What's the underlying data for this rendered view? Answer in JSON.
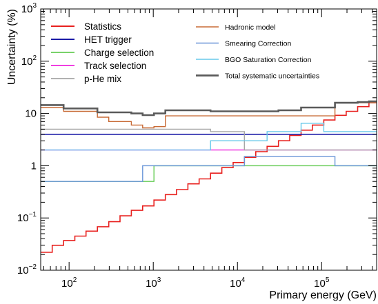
{
  "chart_data": {
    "type": "line",
    "title": "",
    "xlabel": "Primary energy (GeV)",
    "ylabel": "Uncertainty (%)",
    "xscale": "log",
    "yscale": "log",
    "xlim": [
      46,
      450000
    ],
    "ylim": [
      0.01,
      1000
    ],
    "grid": false,
    "legend_placement": "top, two columns",
    "x_ticks": [
      {
        "base": "10",
        "exp": "2",
        "value": 100
      },
      {
        "base": "10",
        "exp": "3",
        "value": 1000
      },
      {
        "base": "10",
        "exp": "4",
        "value": 10000
      },
      {
        "base": "10",
        "exp": "5",
        "value": 100000
      }
    ],
    "y_ticks": [
      {
        "base": "10",
        "exp": "−2",
        "value": 0.01
      },
      {
        "base": "10",
        "exp": "−1",
        "value": 0.1
      },
      {
        "base": "1",
        "exp": "",
        "value": 1
      },
      {
        "base": "10",
        "exp": "",
        "value": 10
      },
      {
        "base": "10",
        "exp": "2",
        "value": 100
      },
      {
        "base": "10",
        "exp": "3",
        "value": 1000
      }
    ],
    "bin_edges": [
      46,
      63,
      86,
      117,
      159,
      217,
      296,
      403,
      549,
      748,
      1020,
      1390,
      1890,
      2580,
      3510,
      4790,
      6520,
      8890,
      12100,
      16500,
      22500,
      30700,
      41800,
      57000,
      77600,
      106000,
      144000,
      196000,
      268000,
      365000,
      450000
    ],
    "series": [
      {
        "name": "Statistics",
        "color": "#e8201e",
        "width": 1.6,
        "legend_col": 0,
        "values": [
          0.022,
          0.03,
          0.037,
          0.045,
          0.056,
          0.068,
          0.085,
          0.11,
          0.14,
          0.17,
          0.22,
          0.28,
          0.35,
          0.45,
          0.56,
          0.72,
          0.92,
          1.15,
          1.45,
          1.85,
          2.35,
          3.0,
          3.8,
          4.8,
          6.0,
          7.5,
          9.2,
          11.0,
          13.5,
          16.0
        ]
      },
      {
        "name": "HET trigger",
        "color": "#1a1aa6",
        "width": 1.6,
        "legend_col": 0,
        "values": [
          4.0,
          4.0,
          4.0,
          4.0,
          4.0,
          4.0,
          4.0,
          4.0,
          4.0,
          4.0,
          4.0,
          4.0,
          4.0,
          4.0,
          4.0,
          4.0,
          4.0,
          4.0,
          4.0,
          4.0,
          4.0,
          4.0,
          4.0,
          4.0,
          4.0,
          4.0,
          4.0,
          4.0,
          4.0,
          4.0
        ]
      },
      {
        "name": "Charge selection",
        "color": "#66cc55",
        "width": 1.4,
        "legend_col": 0,
        "values": [
          0.5,
          0.5,
          0.5,
          0.5,
          0.5,
          0.5,
          0.5,
          0.5,
          0.5,
          0.5,
          1.0,
          1.0,
          1.0,
          1.0,
          1.0,
          1.0,
          1.0,
          1.0,
          1.0,
          1.0,
          1.0,
          1.0,
          1.0,
          1.0,
          1.0,
          1.0,
          1.0,
          1.0,
          1.0,
          1.0
        ]
      },
      {
        "name": "Track selection",
        "color": "#ee22dd",
        "width": 1.4,
        "legend_col": 0,
        "values": [
          2.0,
          2.0,
          2.0,
          2.0,
          2.0,
          2.0,
          2.0,
          2.0,
          2.0,
          2.0,
          2.0,
          2.0,
          2.0,
          2.0,
          2.0,
          2.0,
          2.0,
          2.0,
          2.0,
          2.0,
          2.0,
          2.0,
          2.0,
          2.0,
          2.0,
          2.0,
          2.0,
          2.0,
          2.0,
          2.0
        ]
      },
      {
        "name": "p-He mix",
        "color": "#a6a6a6",
        "width": 1.4,
        "legend_col": 0,
        "values": [
          5.0,
          5.0,
          5.0,
          5.0,
          5.0,
          5.0,
          5.0,
          5.0,
          5.0,
          5.0,
          5.0,
          5.0,
          5.0,
          5.0,
          5.0,
          4.5,
          4.5,
          4.5,
          2.0,
          2.0,
          2.0,
          2.0,
          2.0,
          2.0,
          2.0,
          2.0,
          2.0,
          2.0,
          2.0,
          2.0
        ]
      },
      {
        "name": "Hadronic model",
        "color": "#c86a35",
        "width": 1.4,
        "legend_col": 1,
        "values": [
          13.0,
          13.0,
          11.0,
          11.0,
          11.0,
          8.5,
          7.0,
          7.0,
          6.0,
          5.3,
          5.6,
          9.0,
          9.0,
          9.0,
          9.0,
          9.0,
          9.0,
          9.0,
          9.0,
          9.0,
          9.0,
          9.0,
          9.0,
          9.0,
          9.0,
          9.0,
          16.0,
          16.0,
          16.0,
          16.0
        ]
      },
      {
        "name": "Smearing Correction",
        "color": "#6a96d8",
        "width": 1.4,
        "legend_col": 1,
        "values": [
          0.5,
          0.5,
          0.5,
          0.5,
          0.5,
          0.5,
          0.5,
          0.5,
          0.5,
          1.0,
          1.0,
          1.0,
          1.0,
          1.0,
          1.0,
          1.0,
          1.0,
          1.0,
          1.5,
          1.5,
          1.5,
          1.5,
          1.5,
          1.5,
          1.5,
          1.5,
          1.0,
          1.0,
          1.0,
          1.0
        ]
      },
      {
        "name": "BGO Saturation Correction",
        "color": "#66c8ea",
        "width": 1.4,
        "legend_col": 1,
        "values": [
          2.0,
          2.0,
          2.0,
          2.0,
          2.0,
          2.0,
          2.0,
          2.0,
          2.0,
          2.0,
          2.0,
          2.0,
          2.0,
          2.0,
          2.0,
          3.0,
          3.0,
          3.0,
          3.0,
          3.0,
          4.5,
          4.5,
          4.5,
          6.5,
          6.5,
          4.5,
          4.5,
          4.5,
          4.5,
          4.5
        ]
      },
      {
        "name": "Total systematic uncertainties",
        "color": "#5a5a5a",
        "width": 2.6,
        "legend_col": 1,
        "values": [
          14.5,
          14.5,
          12.5,
          12.5,
          12.5,
          10.5,
          10.5,
          10.5,
          10.0,
          9.3,
          10.0,
          11.5,
          11.5,
          11.5,
          11.5,
          11.0,
          11.0,
          11.0,
          11.0,
          11.0,
          11.0,
          11.5,
          11.5,
          13.0,
          13.0,
          13.0,
          16.0,
          16.0,
          16.5,
          17.0
        ]
      }
    ]
  }
}
